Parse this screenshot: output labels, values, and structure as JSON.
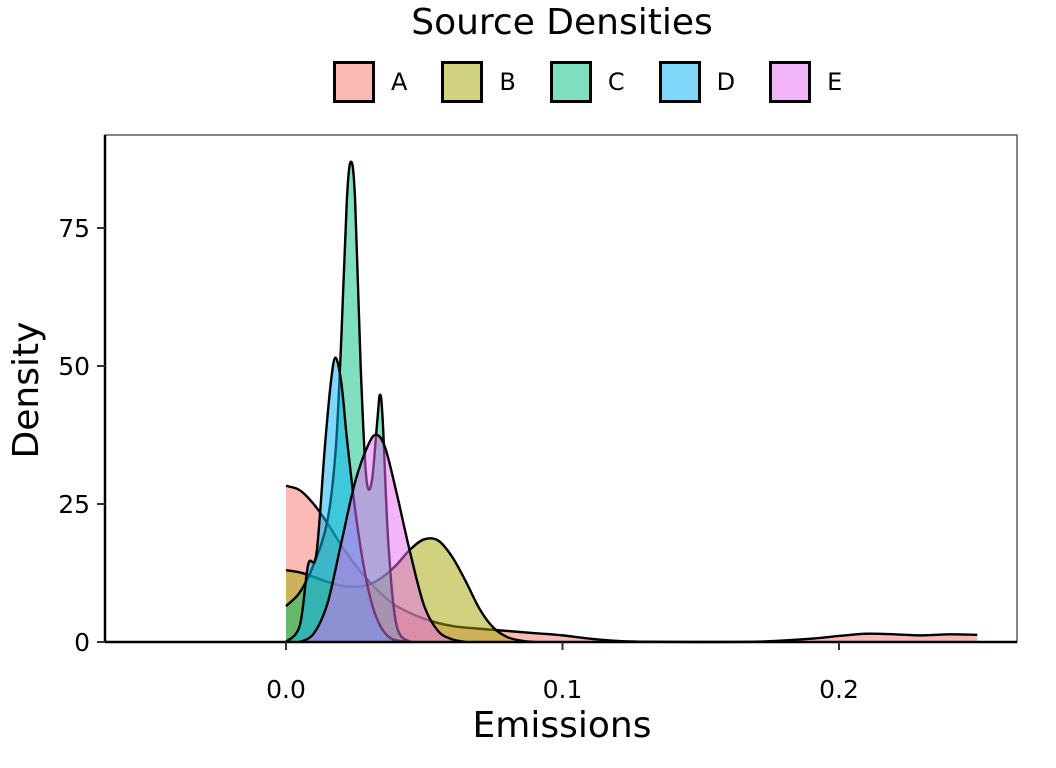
{
  "chart_data": {
    "type": "area",
    "subtype": "density",
    "title": "",
    "legend_title": "Source Densities",
    "legend_position": "top",
    "xlabel": "Emissions",
    "ylabel": "Density",
    "xlim": [
      -0.065,
      0.265
    ],
    "ylim": [
      0,
      90
    ],
    "xticks": [
      0.0,
      0.1,
      0.2
    ],
    "xtick_labels": [
      "0.0",
      "0.1",
      "0.2"
    ],
    "yticks": [
      0,
      25,
      50,
      75
    ],
    "ytick_labels": [
      "0",
      "25",
      "50",
      "75"
    ],
    "grid": false,
    "series": [
      {
        "name": "A",
        "color": "#F8766D",
        "fill": "#FBB9B4",
        "x": [
          0.0,
          0.005,
          0.01,
          0.015,
          0.02,
          0.025,
          0.03,
          0.035,
          0.04,
          0.05,
          0.06,
          0.07,
          0.08,
          0.09,
          0.1,
          0.11,
          0.12,
          0.13,
          0.15,
          0.17,
          0.19,
          0.2,
          0.21,
          0.22,
          0.23,
          0.24,
          0.25
        ],
        "y": [
          28.3,
          27.5,
          25.0,
          21.5,
          17.5,
          14.0,
          11.0,
          8.5,
          6.5,
          4.2,
          2.9,
          2.4,
          2.0,
          1.6,
          1.2,
          0.6,
          0.2,
          0.05,
          0.0,
          0.05,
          0.6,
          1.1,
          1.5,
          1.4,
          1.2,
          1.4,
          1.3
        ]
      },
      {
        "name": "B",
        "color": "#A3A500",
        "fill": "#D1D27F",
        "x": [
          0.0,
          0.005,
          0.01,
          0.015,
          0.02,
          0.025,
          0.03,
          0.035,
          0.04,
          0.045,
          0.05,
          0.055,
          0.06,
          0.065,
          0.07,
          0.075,
          0.08,
          0.085,
          0.09
        ],
        "y": [
          13.0,
          12.6,
          11.8,
          10.9,
          10.2,
          10.0,
          10.4,
          11.8,
          14.0,
          16.8,
          18.6,
          18.4,
          15.5,
          11.0,
          6.0,
          2.6,
          0.9,
          0.25,
          0.0
        ]
      },
      {
        "name": "C",
        "color": "#00BF7D",
        "fill": "#7FDFBE",
        "x": [
          0.0,
          0.005,
          0.01,
          0.015,
          0.018,
          0.02,
          0.022,
          0.0235,
          0.025,
          0.027,
          0.029,
          0.031,
          0.033,
          0.034,
          0.035,
          0.037,
          0.04,
          0.045
        ],
        "y": [
          6.5,
          9.0,
          14.0,
          22.0,
          35.0,
          55.0,
          80.0,
          87.0,
          80.0,
          50.0,
          30.0,
          29.0,
          40.0,
          44.8,
          40.0,
          18.0,
          3.0,
          0.0
        ]
      },
      {
        "name": "D",
        "color": "#00B0F6",
        "fill": "#7FD7FA",
        "x": [
          0.0,
          0.005,
          0.008,
          0.011,
          0.014,
          0.016,
          0.0178,
          0.02,
          0.022,
          0.025,
          0.028,
          0.031,
          0.034,
          0.037,
          0.04,
          0.045
        ],
        "y": [
          0.0,
          3.0,
          14.0,
          16.0,
          35.0,
          46.0,
          51.5,
          47.0,
          37.0,
          24.0,
          14.0,
          7.0,
          3.0,
          1.0,
          0.3,
          0.0
        ]
      },
      {
        "name": "E",
        "color": "#E76BF3",
        "fill": "#F3B5F9",
        "x": [
          0.005,
          0.01,
          0.015,
          0.02,
          0.025,
          0.03,
          0.033,
          0.036,
          0.04,
          0.045,
          0.05,
          0.055,
          0.06,
          0.065
        ],
        "y": [
          0.0,
          1.5,
          7.0,
          18.0,
          29.0,
          36.0,
          37.5,
          35.0,
          27.0,
          16.0,
          6.5,
          2.0,
          0.5,
          0.0
        ]
      }
    ]
  },
  "legend": {
    "title": "Source Densities",
    "items": [
      {
        "label": "A",
        "fill": "#FBB9B4"
      },
      {
        "label": "B",
        "fill": "#D1D27F"
      },
      {
        "label": "C",
        "fill": "#7FDFBE"
      },
      {
        "label": "D",
        "fill": "#7FD7FA"
      },
      {
        "label": "E",
        "fill": "#F3B5F9"
      }
    ]
  },
  "axes": {
    "x_title": "Emissions",
    "y_title": "Density",
    "x_ticks": [
      "0.0",
      "0.1",
      "0.2"
    ],
    "y_ticks": [
      "0",
      "25",
      "50",
      "75"
    ]
  }
}
